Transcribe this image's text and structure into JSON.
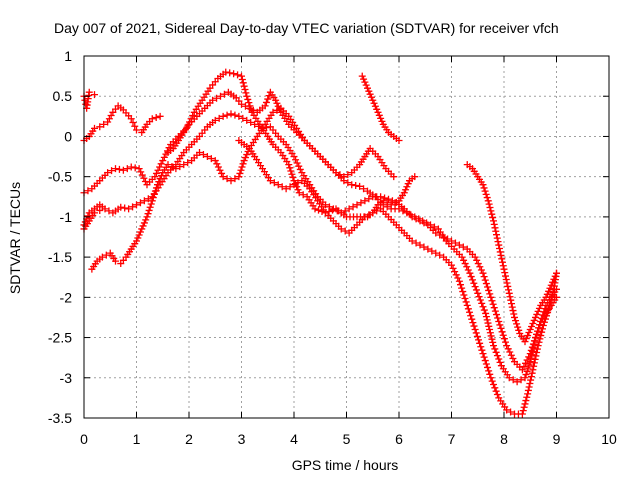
{
  "chart_data": {
    "type": "scatter",
    "title": "Day 007 of 2021, Sidereal Day-to-day VTEC variation (SDTVAR) for receiver vfch",
    "xlabel": "GPS time / hours",
    "ylabel": "SDTVAR / TECUs",
    "xlim": [
      0,
      10
    ],
    "ylim": [
      -3.5,
      1
    ],
    "xticks": [
      0,
      1,
      2,
      3,
      4,
      5,
      6,
      7,
      8,
      9,
      10
    ],
    "yticks": [
      -3.5,
      -3,
      -2.5,
      -2,
      -1.5,
      -1,
      -0.5,
      0,
      0.5,
      1
    ],
    "ytick_labels": [
      "-3.5",
      "-3",
      "-2.5",
      "-2",
      "-1.5",
      "-1",
      "-0.5",
      "0",
      "0.5",
      "1"
    ],
    "grid": true,
    "marker": "+",
    "colors": {
      "series": "#ff0000",
      "grid": "#a0a0a0",
      "axis": "#000000"
    },
    "series": [
      {
        "points": [
          [
            0.0,
            0.5
          ],
          [
            0.05,
            0.35
          ],
          [
            0.1,
            0.55
          ],
          [
            0.2,
            0.52
          ]
        ]
      },
      {
        "points": [
          [
            0.0,
            -0.05
          ],
          [
            0.1,
            0.0
          ],
          [
            0.2,
            0.1
          ],
          [
            0.3,
            0.12
          ],
          [
            0.45,
            0.18
          ],
          [
            0.55,
            0.3
          ],
          [
            0.65,
            0.38
          ],
          [
            0.75,
            0.33
          ],
          [
            0.9,
            0.22
          ],
          [
            1.0,
            0.08
          ],
          [
            1.1,
            0.05
          ],
          [
            1.2,
            0.15
          ],
          [
            1.3,
            0.22
          ],
          [
            1.45,
            0.25
          ]
        ]
      },
      {
        "points": [
          [
            0.0,
            -0.7
          ],
          [
            0.15,
            -0.65
          ],
          [
            0.3,
            -0.55
          ],
          [
            0.45,
            -0.45
          ],
          [
            0.6,
            -0.4
          ],
          [
            0.75,
            -0.42
          ],
          [
            0.9,
            -0.38
          ],
          [
            1.05,
            -0.4
          ],
          [
            1.2,
            -0.6
          ],
          [
            1.35,
            -0.5
          ],
          [
            1.5,
            -0.3
          ],
          [
            1.65,
            -0.1
          ],
          [
            1.8,
            0.0
          ],
          [
            1.95,
            0.1
          ],
          [
            2.1,
            0.3
          ],
          [
            2.25,
            0.45
          ],
          [
            2.4,
            0.6
          ],
          [
            2.55,
            0.72
          ],
          [
            2.7,
            0.8
          ],
          [
            2.85,
            0.78
          ],
          [
            3.0,
            0.75
          ],
          [
            3.1,
            0.5
          ],
          [
            3.2,
            0.3
          ],
          [
            3.35,
            0.15
          ],
          [
            3.5,
            0.0
          ],
          [
            3.6,
            -0.1
          ],
          [
            3.75,
            -0.2
          ],
          [
            3.9,
            -0.35
          ],
          [
            4.0,
            -0.55
          ],
          [
            4.1,
            -0.7
          ],
          [
            4.25,
            -0.75
          ],
          [
            4.4,
            -0.9
          ],
          [
            4.6,
            -0.95
          ],
          [
            4.8,
            -0.9
          ],
          [
            5.0,
            -1.0
          ],
          [
            5.2,
            -1.0
          ],
          [
            5.4,
            -1.0
          ],
          [
            5.5,
            -0.95
          ],
          [
            5.6,
            -0.85
          ],
          [
            5.7,
            -0.8
          ],
          [
            5.85,
            -0.85
          ],
          [
            6.0,
            -0.8
          ],
          [
            6.1,
            -0.7
          ],
          [
            6.2,
            -0.55
          ],
          [
            6.3,
            -0.5
          ]
        ]
      },
      {
        "points": [
          [
            0.0,
            -1.1
          ],
          [
            0.1,
            -0.95
          ],
          [
            0.2,
            -0.9
          ],
          [
            0.3,
            -0.85
          ],
          [
            0.4,
            -0.9
          ],
          [
            0.55,
            -0.95
          ],
          [
            0.7,
            -0.88
          ],
          [
            0.85,
            -0.9
          ],
          [
            1.0,
            -0.85
          ],
          [
            1.15,
            -0.8
          ],
          [
            1.3,
            -0.75
          ],
          [
            1.45,
            -0.6
          ],
          [
            1.6,
            -0.45
          ],
          [
            1.75,
            -0.35
          ],
          [
            1.9,
            -0.2
          ],
          [
            2.05,
            -0.1
          ],
          [
            2.2,
            0.0
          ],
          [
            2.35,
            0.12
          ],
          [
            2.5,
            0.2
          ],
          [
            2.65,
            0.25
          ],
          [
            2.8,
            0.28
          ],
          [
            2.95,
            0.25
          ],
          [
            3.1,
            0.2
          ],
          [
            3.25,
            0.15
          ],
          [
            3.4,
            0.1
          ],
          [
            3.55,
            0.12
          ],
          [
            3.7,
            0.0
          ],
          [
            3.85,
            -0.1
          ],
          [
            4.0,
            -0.25
          ],
          [
            4.15,
            -0.45
          ],
          [
            4.3,
            -0.6
          ],
          [
            4.45,
            -0.75
          ],
          [
            4.6,
            -0.85
          ],
          [
            4.75,
            -0.9
          ],
          [
            4.9,
            -0.95
          ],
          [
            5.05,
            -0.9
          ],
          [
            5.2,
            -0.85
          ],
          [
            5.35,
            -0.8
          ],
          [
            5.5,
            -0.75
          ],
          [
            5.65,
            -0.75
          ],
          [
            5.8,
            -0.78
          ],
          [
            5.95,
            -0.82
          ],
          [
            6.1,
            -0.9
          ],
          [
            6.25,
            -1.0
          ],
          [
            6.4,
            -1.05
          ],
          [
            6.55,
            -1.1
          ],
          [
            6.7,
            -1.2
          ],
          [
            6.85,
            -1.25
          ],
          [
            7.0,
            -1.3
          ],
          [
            7.15,
            -1.35
          ],
          [
            7.3,
            -1.4
          ],
          [
            7.45,
            -1.5
          ],
          [
            7.6,
            -1.7
          ],
          [
            7.75,
            -2.0
          ],
          [
            7.9,
            -2.3
          ],
          [
            8.05,
            -2.6
          ],
          [
            8.2,
            -2.8
          ],
          [
            8.35,
            -2.9
          ],
          [
            8.5,
            -2.7
          ],
          [
            8.6,
            -2.5
          ],
          [
            8.7,
            -2.3
          ],
          [
            8.8,
            -2.1
          ],
          [
            8.9,
            -2.0
          ],
          [
            9.0,
            -1.9
          ]
        ]
      },
      {
        "points": [
          [
            0.0,
            -1.15
          ],
          [
            0.1,
            -1.05
          ],
          [
            0.2,
            -0.95
          ],
          [
            0.3,
            -0.92
          ]
        ]
      },
      {
        "points": [
          [
            0.15,
            -1.65
          ],
          [
            0.25,
            -1.55
          ],
          [
            0.35,
            -1.5
          ],
          [
            0.5,
            -1.45
          ],
          [
            0.6,
            -1.55
          ],
          [
            0.7,
            -1.58
          ],
          [
            0.8,
            -1.5
          ],
          [
            0.9,
            -1.4
          ],
          [
            1.0,
            -1.3
          ],
          [
            1.1,
            -1.15
          ],
          [
            1.2,
            -1.0
          ],
          [
            1.3,
            -0.8
          ],
          [
            1.4,
            -0.6
          ],
          [
            1.5,
            -0.45
          ],
          [
            1.6,
            -0.35
          ],
          [
            1.75,
            -0.4
          ],
          [
            1.9,
            -0.35
          ],
          [
            2.05,
            -0.3
          ],
          [
            2.2,
            -0.2
          ],
          [
            2.35,
            -0.25
          ],
          [
            2.5,
            -0.3
          ],
          [
            2.65,
            -0.5
          ],
          [
            2.8,
            -0.55
          ],
          [
            2.95,
            -0.5
          ],
          [
            3.05,
            -0.3
          ],
          [
            3.15,
            -0.15
          ],
          [
            3.3,
            0.0
          ],
          [
            3.45,
            0.15
          ],
          [
            3.6,
            0.3
          ],
          [
            3.75,
            0.35
          ],
          [
            3.9,
            0.25
          ],
          [
            4.05,
            0.1
          ],
          [
            4.2,
            -0.05
          ],
          [
            4.35,
            -0.15
          ],
          [
            4.5,
            -0.25
          ],
          [
            4.65,
            -0.35
          ],
          [
            4.8,
            -0.45
          ],
          [
            4.95,
            -0.55
          ],
          [
            5.1,
            -0.6
          ],
          [
            5.25,
            -0.62
          ],
          [
            5.4,
            -0.68
          ],
          [
            5.55,
            -0.75
          ],
          [
            5.7,
            -0.85
          ],
          [
            5.85,
            -0.9
          ],
          [
            6.0,
            -0.9
          ],
          [
            6.15,
            -0.95
          ],
          [
            6.3,
            -1.0
          ],
          [
            6.45,
            -1.05
          ],
          [
            6.6,
            -1.1
          ],
          [
            6.75,
            -1.15
          ],
          [
            6.9,
            -1.3
          ],
          [
            7.05,
            -1.4
          ],
          [
            7.2,
            -1.5
          ],
          [
            7.35,
            -1.7
          ],
          [
            7.5,
            -1.95
          ],
          [
            7.65,
            -2.2
          ],
          [
            7.8,
            -2.6
          ],
          [
            7.95,
            -2.85
          ],
          [
            8.1,
            -3.0
          ],
          [
            8.25,
            -3.05
          ],
          [
            8.4,
            -3.0
          ],
          [
            8.5,
            -2.8
          ],
          [
            8.6,
            -2.5
          ],
          [
            8.7,
            -2.3
          ],
          [
            8.8,
            -2.2
          ],
          [
            8.9,
            -2.1
          ],
          [
            9.0,
            -2.0
          ]
        ]
      },
      {
        "points": [
          [
            1.6,
            -0.2
          ],
          [
            1.7,
            -0.15
          ],
          [
            1.8,
            -0.05
          ],
          [
            1.9,
            0.05
          ],
          [
            2.0,
            0.15
          ],
          [
            2.15,
            0.25
          ],
          [
            2.3,
            0.35
          ],
          [
            2.45,
            0.45
          ],
          [
            2.6,
            0.5
          ],
          [
            2.75,
            0.55
          ],
          [
            2.9,
            0.48
          ],
          [
            3.0,
            0.4
          ],
          [
            3.15,
            0.35
          ],
          [
            3.3,
            0.3
          ],
          [
            3.45,
            0.38
          ],
          [
            3.55,
            0.55
          ],
          [
            3.65,
            0.45
          ],
          [
            3.75,
            0.3
          ],
          [
            3.9,
            0.15
          ],
          [
            4.05,
            0.05
          ],
          [
            4.2,
            -0.05
          ],
          [
            4.35,
            -0.15
          ],
          [
            4.5,
            -0.25
          ],
          [
            4.65,
            -0.35
          ],
          [
            4.8,
            -0.45
          ],
          [
            4.95,
            -0.5
          ],
          [
            5.1,
            -0.45
          ],
          [
            5.25,
            -0.35
          ],
          [
            5.35,
            -0.25
          ],
          [
            5.45,
            -0.15
          ],
          [
            5.6,
            -0.25
          ],
          [
            5.75,
            -0.4
          ],
          [
            5.9,
            -0.5
          ]
        ]
      },
      {
        "points": [
          [
            5.3,
            0.75
          ],
          [
            5.4,
            0.6
          ],
          [
            5.5,
            0.45
          ],
          [
            5.6,
            0.3
          ],
          [
            5.7,
            0.15
          ],
          [
            5.8,
            0.05
          ],
          [
            5.9,
            0.0
          ],
          [
            6.0,
            -0.05
          ]
        ]
      },
      {
        "points": [
          [
            2.95,
            -0.05
          ],
          [
            3.05,
            -0.1
          ],
          [
            3.15,
            -0.15
          ],
          [
            3.25,
            -0.25
          ],
          [
            3.4,
            -0.4
          ],
          [
            3.55,
            -0.55
          ],
          [
            3.7,
            -0.6
          ],
          [
            3.85,
            -0.65
          ],
          [
            4.0,
            -0.6
          ],
          [
            4.15,
            -0.55
          ],
          [
            4.3,
            -0.65
          ],
          [
            4.45,
            -0.8
          ],
          [
            4.6,
            -0.95
          ],
          [
            4.75,
            -1.05
          ],
          [
            4.9,
            -1.15
          ],
          [
            5.05,
            -1.2
          ],
          [
            5.2,
            -1.1
          ],
          [
            5.35,
            -1.0
          ],
          [
            5.5,
            -0.95
          ],
          [
            5.65,
            -0.9
          ],
          [
            5.8,
            -1.0
          ],
          [
            5.95,
            -1.1
          ],
          [
            6.1,
            -1.2
          ],
          [
            6.25,
            -1.3
          ],
          [
            6.4,
            -1.35
          ],
          [
            6.55,
            -1.4
          ],
          [
            6.7,
            -1.45
          ],
          [
            6.85,
            -1.5
          ],
          [
            7.0,
            -1.6
          ],
          [
            7.15,
            -1.8
          ],
          [
            7.3,
            -2.1
          ],
          [
            7.45,
            -2.4
          ],
          [
            7.6,
            -2.7
          ],
          [
            7.75,
            -3.0
          ],
          [
            7.9,
            -3.25
          ],
          [
            8.05,
            -3.4
          ],
          [
            8.2,
            -3.45
          ],
          [
            8.35,
            -3.45
          ],
          [
            8.45,
            -3.2
          ],
          [
            8.55,
            -2.9
          ],
          [
            8.65,
            -2.6
          ],
          [
            8.75,
            -2.35
          ],
          [
            8.85,
            -2.15
          ],
          [
            8.95,
            -1.9
          ],
          [
            9.0,
            -1.7
          ]
        ]
      },
      {
        "points": [
          [
            7.3,
            -0.35
          ],
          [
            7.4,
            -0.4
          ],
          [
            7.5,
            -0.5
          ],
          [
            7.6,
            -0.6
          ],
          [
            7.7,
            -0.8
          ],
          [
            7.8,
            -1.05
          ],
          [
            7.9,
            -1.35
          ],
          [
            8.0,
            -1.65
          ],
          [
            8.1,
            -1.95
          ],
          [
            8.2,
            -2.25
          ],
          [
            8.3,
            -2.45
          ],
          [
            8.4,
            -2.55
          ],
          [
            8.5,
            -2.4
          ],
          [
            8.6,
            -2.25
          ],
          [
            8.7,
            -2.1
          ],
          [
            8.8,
            -2.0
          ],
          [
            8.9,
            -1.85
          ],
          [
            9.0,
            -1.7
          ]
        ]
      }
    ]
  }
}
